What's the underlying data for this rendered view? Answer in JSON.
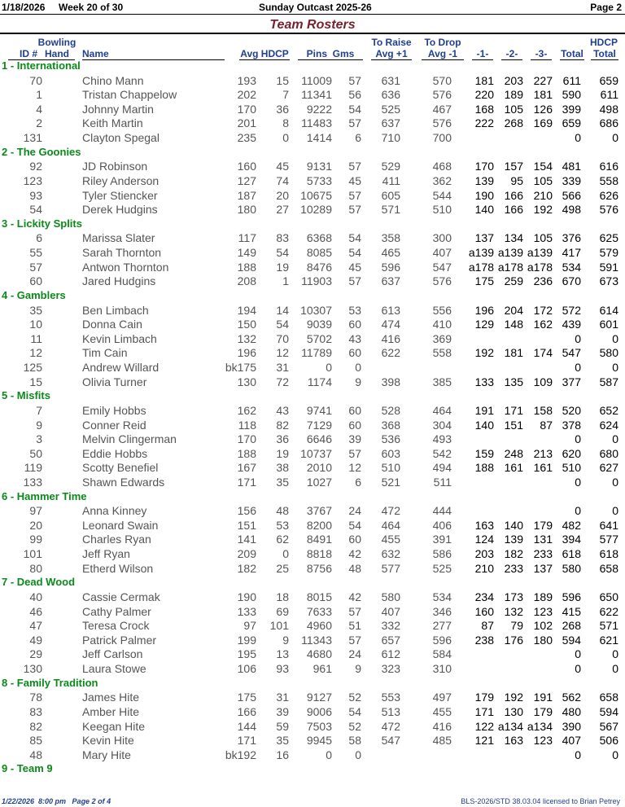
{
  "header": {
    "date": "1/18/2026",
    "week": "Week 20 of 30",
    "league": "Sunday Outcast 2025-26",
    "page": "Page 2"
  },
  "title": "Team Rosters",
  "columns": {
    "id": "ID #",
    "hand1": "Bowling",
    "hand2": "Hand",
    "name": "Name",
    "avg_hdcp": "Avg HDCP",
    "pins_gms": "Pins  Gms",
    "raise1": "To Raise",
    "raise2": "Avg +1",
    "drop1": "To Drop",
    "drop2": "Avg -1",
    "g1": "-1-",
    "g2": "-2-",
    "g3": "-3-",
    "total": "Total",
    "hdcp1": "HDCP",
    "hdcp2": "Total"
  },
  "teams": [
    {
      "name": "1 - International",
      "players": [
        [
          "70",
          "Chino Mann",
          "193",
          "15",
          "11009",
          "57",
          "631",
          "570",
          "181",
          "203",
          "227",
          "611",
          "659"
        ],
        [
          "1",
          "Tristan Chappelow",
          "202",
          "7",
          "11341",
          "56",
          "636",
          "576",
          "220",
          "189",
          "181",
          "590",
          "611"
        ],
        [
          "4",
          "Johnny Martin",
          "170",
          "36",
          "9222",
          "54",
          "525",
          "467",
          "168",
          "105",
          "126",
          "399",
          "498"
        ],
        [
          "2",
          "Keith Martin",
          "201",
          "8",
          "11483",
          "57",
          "637",
          "576",
          "222",
          "268",
          "169",
          "659",
          "686"
        ],
        [
          "131",
          "Clayton Spegal",
          "235",
          "0",
          "1414",
          "6",
          "710",
          "700",
          "",
          "",
          "",
          "0",
          "0"
        ]
      ]
    },
    {
      "name": "2 - The Goonies",
      "players": [
        [
          "92",
          "JD Robinson",
          "160",
          "45",
          "9131",
          "57",
          "529",
          "468",
          "170",
          "157",
          "154",
          "481",
          "616"
        ],
        [
          "123",
          "Riley Anderson",
          "127",
          "74",
          "5733",
          "45",
          "411",
          "362",
          "139",
          "95",
          "105",
          "339",
          "558"
        ],
        [
          "93",
          "Tyler Stiencker",
          "187",
          "20",
          "10675",
          "57",
          "605",
          "544",
          "190",
          "166",
          "210",
          "566",
          "626"
        ],
        [
          "54",
          "Derek Hudgins",
          "180",
          "27",
          "10289",
          "57",
          "571",
          "510",
          "140",
          "166",
          "192",
          "498",
          "576"
        ]
      ]
    },
    {
      "name": "3 - Lickity Splits",
      "players": [
        [
          "6",
          "Marissa Slater",
          "117",
          "83",
          "6368",
          "54",
          "358",
          "300",
          "137",
          "134",
          "105",
          "376",
          "625"
        ],
        [
          "55",
          "Sarah Thornton",
          "149",
          "54",
          "8085",
          "54",
          "465",
          "407",
          "a139",
          "a139",
          "a139",
          "417",
          "579"
        ],
        [
          "57",
          "Antwon Thornton",
          "188",
          "19",
          "8476",
          "45",
          "596",
          "547",
          "a178",
          "a178",
          "a178",
          "534",
          "591"
        ],
        [
          "60",
          "Jared Hudgins",
          "208",
          "1",
          "11903",
          "57",
          "637",
          "576",
          "175",
          "259",
          "236",
          "670",
          "673"
        ]
      ]
    },
    {
      "name": "4 - Gamblers",
      "players": [
        [
          "35",
          "Ben Limbach",
          "194",
          "14",
          "10307",
          "53",
          "613",
          "556",
          "196",
          "204",
          "172",
          "572",
          "614"
        ],
        [
          "10",
          "Donna Cain",
          "150",
          "54",
          "9039",
          "60",
          "474",
          "410",
          "129",
          "148",
          "162",
          "439",
          "601"
        ],
        [
          "11",
          "Kevin Limbach",
          "132",
          "70",
          "5702",
          "43",
          "416",
          "369",
          "",
          "",
          "",
          "0",
          "0"
        ],
        [
          "12",
          "Tim Cain",
          "196",
          "12",
          "11789",
          "60",
          "622",
          "558",
          "192",
          "181",
          "174",
          "547",
          "580"
        ],
        [
          "125",
          "Andrew Willard",
          "bk175",
          "31",
          "0",
          "0",
          "",
          "",
          "",
          "",
          "",
          "0",
          "0"
        ],
        [
          "15",
          "Olivia Turner",
          "130",
          "72",
          "1174",
          "9",
          "398",
          "385",
          "133",
          "135",
          "109",
          "377",
          "587"
        ]
      ]
    },
    {
      "name": "5 - Misfits",
      "players": [
        [
          "7",
          "Emily Hobbs",
          "162",
          "43",
          "9741",
          "60",
          "528",
          "464",
          "191",
          "171",
          "158",
          "520",
          "652"
        ],
        [
          "9",
          "Conner Reid",
          "118",
          "82",
          "7129",
          "60",
          "368",
          "304",
          "140",
          "151",
          "87",
          "378",
          "624"
        ],
        [
          "3",
          "Melvin Clingerman",
          "170",
          "36",
          "6646",
          "39",
          "536",
          "493",
          "",
          "",
          "",
          "0",
          "0"
        ],
        [
          "50",
          "Eddie Hobbs",
          "188",
          "19",
          "10737",
          "57",
          "603",
          "542",
          "159",
          "248",
          "213",
          "620",
          "680"
        ],
        [
          "119",
          "Scotty Benefiel",
          "167",
          "38",
          "2010",
          "12",
          "510",
          "494",
          "188",
          "161",
          "161",
          "510",
          "627"
        ],
        [
          "133",
          "Shawn Edwards",
          "171",
          "35",
          "1027",
          "6",
          "521",
          "511",
          "",
          "",
          "",
          "0",
          "0"
        ]
      ]
    },
    {
      "name": "6 - Hammer Time",
      "players": [
        [
          "97",
          "Anna Kinney",
          "156",
          "48",
          "3767",
          "24",
          "472",
          "444",
          "",
          "",
          "",
          "0",
          "0"
        ],
        [
          "20",
          "Leonard Swain",
          "151",
          "53",
          "8200",
          "54",
          "464",
          "406",
          "163",
          "140",
          "179",
          "482",
          "641"
        ],
        [
          "99",
          "Charles Ryan",
          "141",
          "62",
          "8491",
          "60",
          "455",
          "391",
          "124",
          "139",
          "131",
          "394",
          "577"
        ],
        [
          "101",
          "Jeff Ryan",
          "209",
          "0",
          "8818",
          "42",
          "632",
          "586",
          "203",
          "182",
          "233",
          "618",
          "618"
        ],
        [
          "80",
          "Etherd Wilson",
          "182",
          "25",
          "8756",
          "48",
          "577",
          "525",
          "210",
          "233",
          "137",
          "580",
          "658"
        ]
      ]
    },
    {
      "name": "7 - Dead Wood",
      "players": [
        [
          "40",
          "Cassie Cermak",
          "190",
          "18",
          "8015",
          "42",
          "580",
          "534",
          "234",
          "173",
          "189",
          "596",
          "650"
        ],
        [
          "46",
          "Cathy Palmer",
          "133",
          "69",
          "7633",
          "57",
          "407",
          "346",
          "160",
          "132",
          "123",
          "415",
          "622"
        ],
        [
          "47",
          "Teresa Crock",
          "97",
          "101",
          "4960",
          "51",
          "332",
          "277",
          "87",
          "79",
          "102",
          "268",
          "571"
        ],
        [
          "49",
          "Patrick Palmer",
          "199",
          "9",
          "11343",
          "57",
          "657",
          "596",
          "238",
          "176",
          "180",
          "594",
          "621"
        ],
        [
          "29",
          "Jeff Carlson",
          "195",
          "13",
          "4680",
          "24",
          "612",
          "584",
          "",
          "",
          "",
          "0",
          "0"
        ],
        [
          "130",
          "Laura Stowe",
          "106",
          "93",
          "961",
          "9",
          "323",
          "310",
          "",
          "",
          "",
          "0",
          "0"
        ]
      ]
    },
    {
      "name": "8 - Family Tradition",
      "players": [
        [
          "78",
          "James Hite",
          "175",
          "31",
          "9127",
          "52",
          "553",
          "497",
          "179",
          "192",
          "191",
          "562",
          "658"
        ],
        [
          "83",
          "Amber Hite",
          "166",
          "39",
          "9006",
          "54",
          "513",
          "455",
          "171",
          "130",
          "179",
          "480",
          "594"
        ],
        [
          "82",
          "Keegan Hite",
          "144",
          "59",
          "7503",
          "52",
          "472",
          "416",
          "122",
          "a134",
          "a134",
          "390",
          "567"
        ],
        [
          "85",
          "Kevin Hite",
          "171",
          "35",
          "9945",
          "58",
          "547",
          "485",
          "121",
          "163",
          "123",
          "407",
          "506"
        ],
        [
          "48",
          "Mary Hite",
          "bk192",
          "16",
          "0",
          "0",
          "",
          "",
          "",
          "",
          "",
          "0",
          "0"
        ]
      ]
    },
    {
      "name": "9 - Team 9",
      "players": []
    }
  ],
  "footer": {
    "printed": "1/22/2026  8:00 pm   Page 2 of 4",
    "license": "BLS-2026/STD 38.03.04 licensed to Brian Petrey"
  },
  "colors": {
    "title": "#7a1f2e",
    "team": "#0a8a1a",
    "header": "#1f3f8f"
  }
}
